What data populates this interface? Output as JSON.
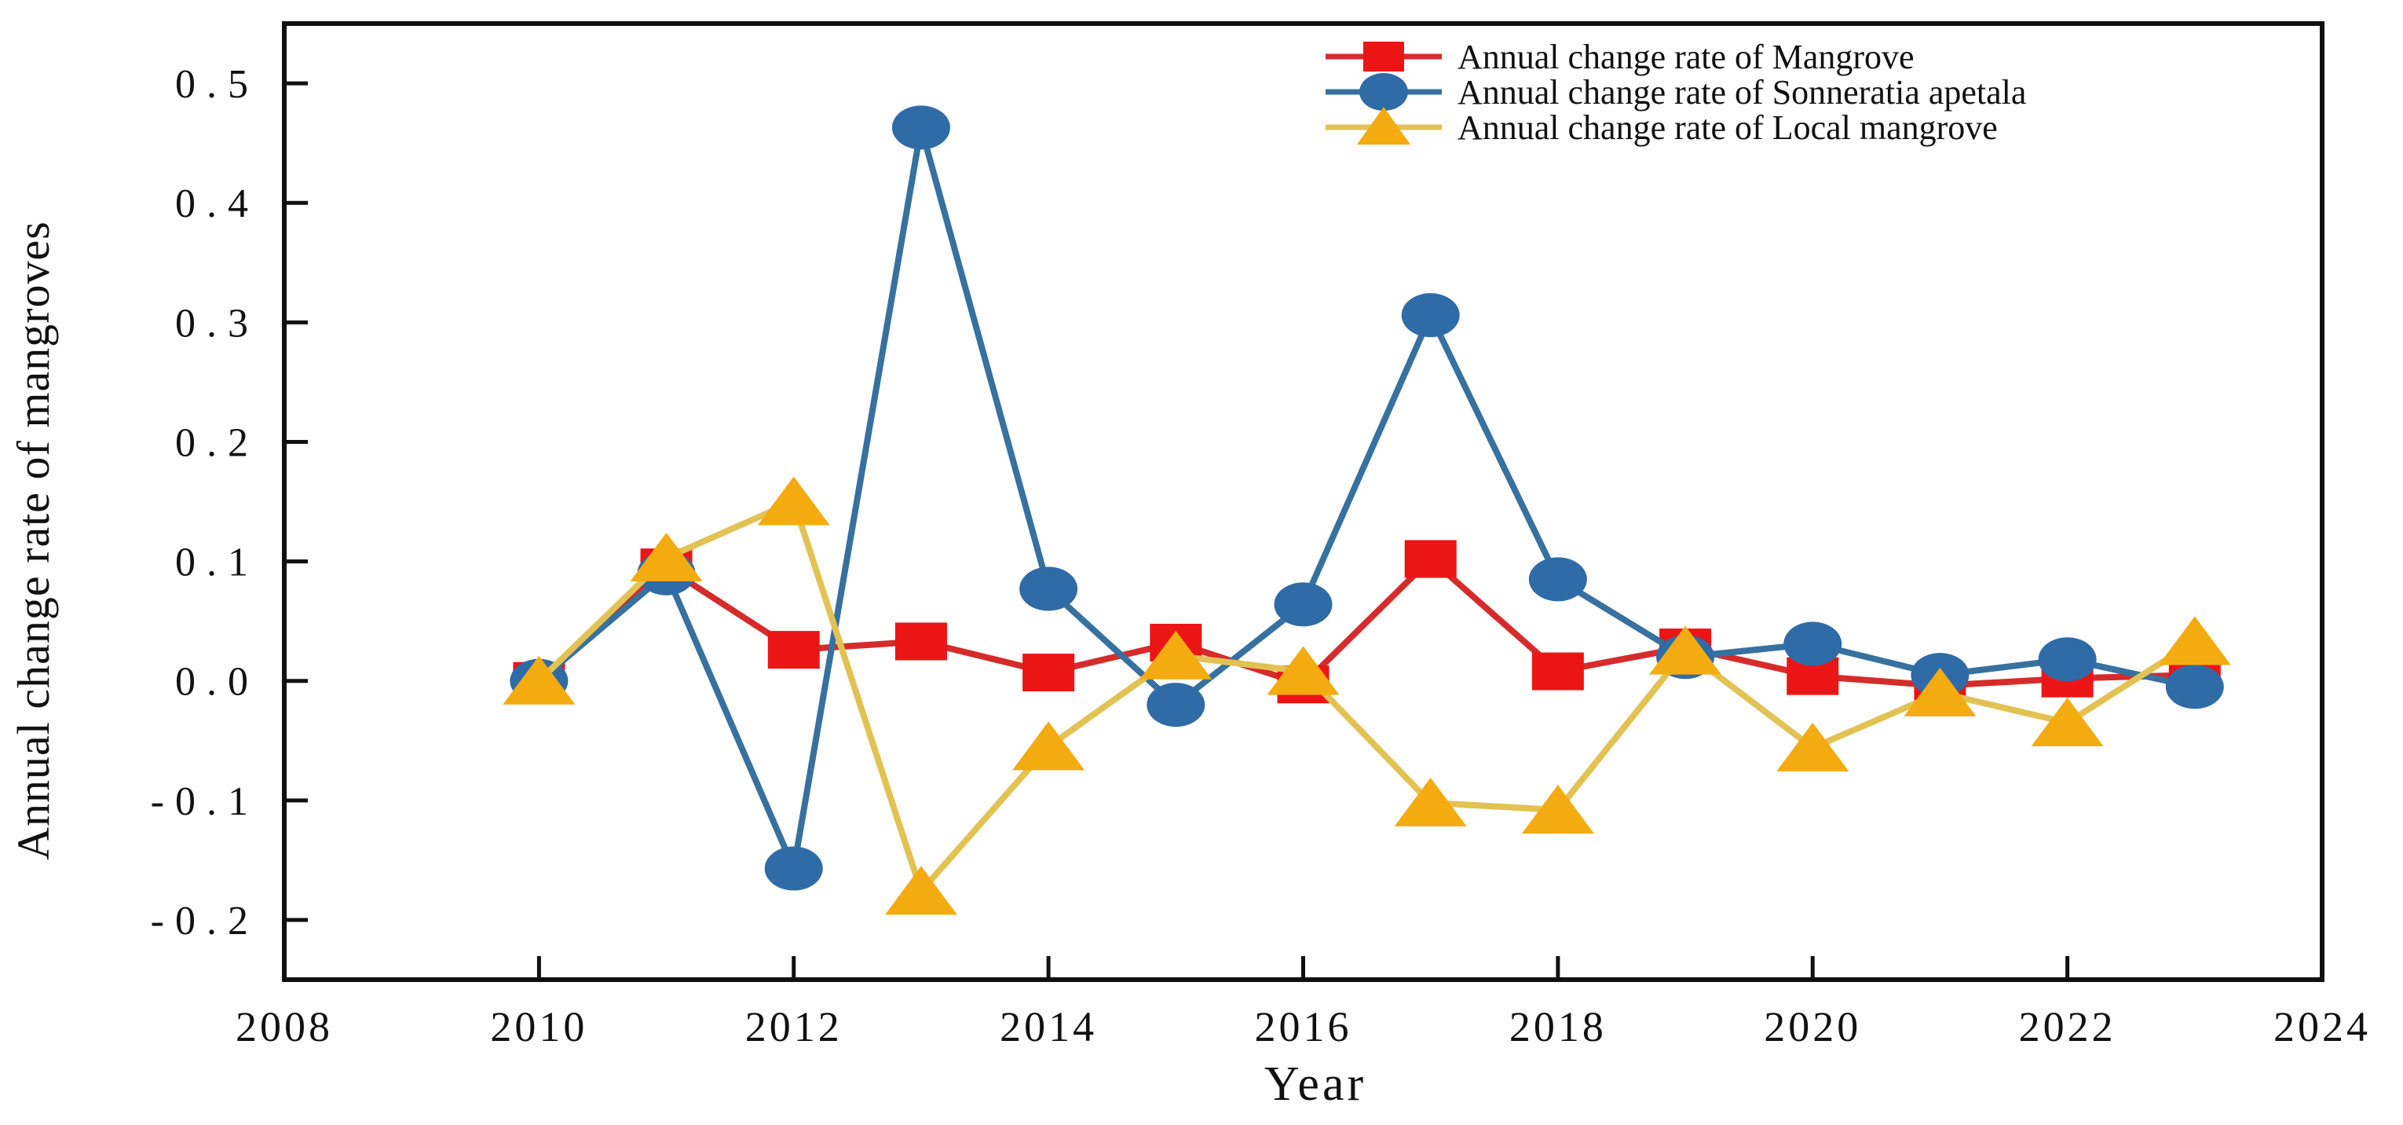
{
  "chart_data": {
    "type": "line",
    "title": "",
    "xlabel": "Year",
    "ylabel": "Annual change rate of mangroves",
    "xlim": [
      2008,
      2024
    ],
    "ylim": [
      -0.25,
      0.55
    ],
    "xticks": [
      2008,
      2010,
      2012,
      2014,
      2016,
      2018,
      2020,
      2022,
      2024
    ],
    "xtick_labels": [
      "2008",
      "2010",
      "2012",
      "2014",
      "2016",
      "2018",
      "2020",
      "2022",
      "2024"
    ],
    "yticks": [
      0.5,
      0.4,
      0.3,
      0.2,
      0.1,
      0.0,
      -0.1,
      -0.2
    ],
    "ytick_labels": [
      "0.5",
      "0.4",
      "0.3",
      "0.2",
      "0.1",
      "0.0",
      "-0.1",
      "-0.2"
    ],
    "grid": false,
    "legend_position": "upper-right",
    "tick_direction": "in",
    "x": [
      2010,
      2011,
      2012,
      2013,
      2014,
      2015,
      2016,
      2017,
      2018,
      2019,
      2020,
      2021,
      2022,
      2023
    ],
    "series": [
      {
        "name": "Annual change rate of Mangrove",
        "marker": "square",
        "marker_color": "#ec1515",
        "line_color": "#d62b2b",
        "values": [
          0.0,
          0.095,
          0.026,
          0.033,
          0.007,
          0.032,
          -0.003,
          0.102,
          0.008,
          0.028,
          0.004,
          -0.004,
          0.002,
          0.005
        ]
      },
      {
        "name": "Annual change rate of Sonneratia apetala",
        "marker": "circle",
        "marker_color": "#2f6ba6",
        "line_color": "#36719f",
        "values": [
          0.0,
          0.09,
          -0.157,
          0.463,
          0.077,
          -0.02,
          0.064,
          0.306,
          0.085,
          0.02,
          0.031,
          0.005,
          0.018,
          -0.005
        ]
      },
      {
        "name": "Annual change rate of Local mangrove",
        "marker": "triangle",
        "marker_color": "#f4ab10",
        "line_color": "#e2c252",
        "values": [
          0.0,
          0.103,
          0.15,
          -0.176,
          -0.055,
          0.021,
          0.008,
          -0.102,
          -0.108,
          0.025,
          -0.056,
          -0.01,
          -0.035,
          0.033
        ]
      }
    ]
  },
  "colors": {
    "axis": "#111111",
    "background": "#ffffff"
  }
}
